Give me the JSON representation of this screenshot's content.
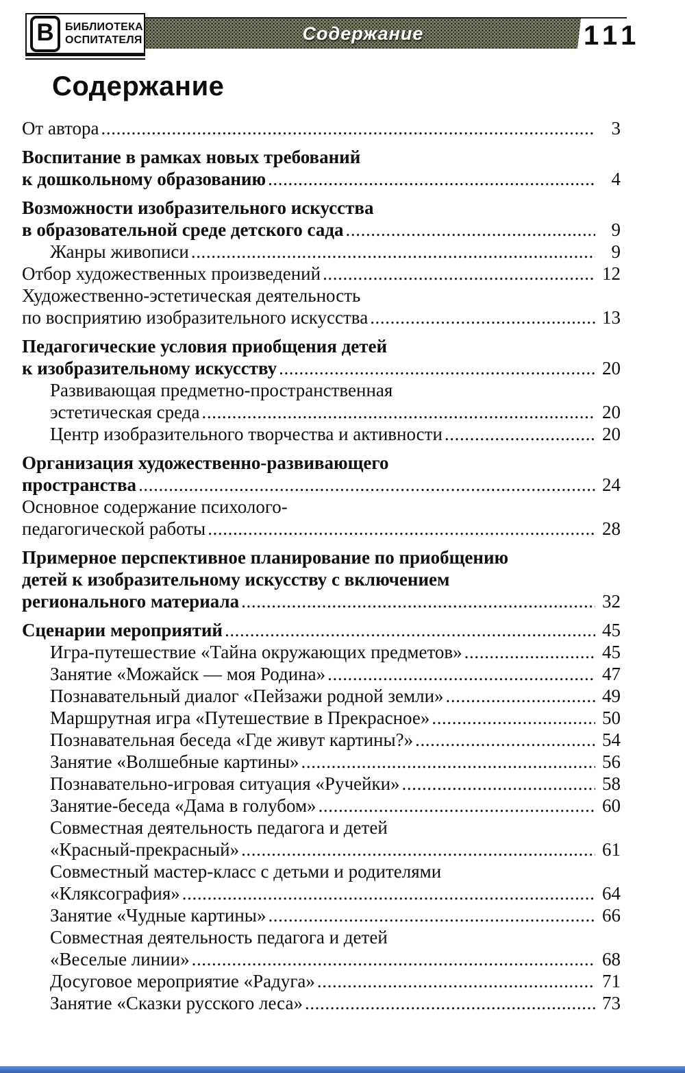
{
  "header": {
    "logo": {
      "initial": "В",
      "line1": "БИБЛИОТЕКА",
      "line2": "ОСПИТАТЕЛЯ"
    },
    "banner_title": "Содержание",
    "page_number": "111"
  },
  "page_title": "Содержание",
  "toc": {
    "entries": [
      {
        "lines": [
          "От автора"
        ],
        "page": "3",
        "bold": false,
        "indent": 0,
        "gap": false
      },
      {
        "lines": [
          "Воспитание в рамках новых требований",
          "к дошкольному образованию"
        ],
        "page": "4",
        "bold": true,
        "indent": 0,
        "gap": true
      },
      {
        "lines": [
          "Возможности изобразительного искусства",
          "в образовательной среде детского сада"
        ],
        "page": "9",
        "bold": true,
        "indent": 0,
        "gap": true
      },
      {
        "lines": [
          "Жанры живописи"
        ],
        "page": "9",
        "bold": false,
        "indent": 1,
        "gap": false
      },
      {
        "lines": [
          "Отбор художественных произведений"
        ],
        "page": "12",
        "bold": false,
        "indent": 0,
        "gap": false
      },
      {
        "lines": [
          "Художественно-эстетическая деятельность",
          "по восприятию изобразительного искусства"
        ],
        "page": "13",
        "bold": false,
        "indent": 0,
        "gap": false
      },
      {
        "lines": [
          "Педагогические условия приобщения детей",
          "к изобразительному искусству"
        ],
        "page": "20",
        "bold": true,
        "indent": 0,
        "gap": true
      },
      {
        "lines": [
          "Развивающая предметно-пространственная",
          "эстетическая среда"
        ],
        "page": "20",
        "bold": false,
        "indent": 1,
        "gap": false
      },
      {
        "lines": [
          "Центр изобразительного творчества и активности"
        ],
        "page": "20",
        "bold": false,
        "indent": 1,
        "gap": false
      },
      {
        "lines": [
          "Организация художественно-развивающего",
          "пространства"
        ],
        "page": "24",
        "bold": true,
        "indent": 0,
        "gap": true
      },
      {
        "lines": [
          "Основное содержание психолого-",
          "педагогической работы"
        ],
        "page": "28",
        "bold": false,
        "indent": 0,
        "gap": false
      },
      {
        "lines": [
          "Примерное перспективное планирование по приобщению",
          "детей к изобразительному искусству с включением",
          "регионального материала"
        ],
        "page": "32",
        "bold": true,
        "indent": 0,
        "gap": true
      },
      {
        "lines": [
          "Сценарии мероприятий"
        ],
        "page": "45",
        "bold": true,
        "indent": 0,
        "gap": true
      },
      {
        "lines": [
          "Игра-путешествие «Тайна окружающих предметов»"
        ],
        "page": "45",
        "bold": false,
        "indent": 1,
        "gap": false
      },
      {
        "lines": [
          "Занятие «Можайск — моя Родина»"
        ],
        "page": "47",
        "bold": false,
        "indent": 1,
        "gap": false
      },
      {
        "lines": [
          "Познавательный диалог «Пейзажи родной земли»"
        ],
        "page": "49",
        "bold": false,
        "indent": 1,
        "gap": false
      },
      {
        "lines": [
          "Маршрутная игра «Путешествие в Прекрасное»"
        ],
        "page": "50",
        "bold": false,
        "indent": 1,
        "gap": false
      },
      {
        "lines": [
          "Познавательная беседа «Где живут картины?»"
        ],
        "page": "54",
        "bold": false,
        "indent": 1,
        "gap": false
      },
      {
        "lines": [
          "Занятие «Волшебные картины»"
        ],
        "page": "56",
        "bold": false,
        "indent": 1,
        "gap": false
      },
      {
        "lines": [
          "Познавательно-игровая ситуация «Ручейки»"
        ],
        "page": "58",
        "bold": false,
        "indent": 1,
        "gap": false
      },
      {
        "lines": [
          "Занятие-беседа «Дама в голубом»"
        ],
        "page": "60",
        "bold": false,
        "indent": 1,
        "gap": false
      },
      {
        "lines": [
          "Совместная деятельность педагога и детей",
          "«Красный-прекрасный»"
        ],
        "page": "61",
        "bold": false,
        "indent": 1,
        "gap": false
      },
      {
        "lines": [
          "Совместный мастер-класс с детьми и родителями",
          "«Кляксография»"
        ],
        "page": "64",
        "bold": false,
        "indent": 1,
        "gap": false
      },
      {
        "lines": [
          "Занятие «Чудные картины»"
        ],
        "page": "66",
        "bold": false,
        "indent": 1,
        "gap": false
      },
      {
        "lines": [
          "Совместная деятельность педагога и детей",
          "«Веселые линии»"
        ],
        "page": "68",
        "bold": false,
        "indent": 1,
        "gap": false
      },
      {
        "lines": [
          "Досуговое мероприятие «Радуга»"
        ],
        "page": "71",
        "bold": false,
        "indent": 1,
        "gap": false
      },
      {
        "lines": [
          "Занятие «Сказки русского леса»"
        ],
        "page": "73",
        "bold": false,
        "indent": 1,
        "gap": false
      }
    ]
  },
  "colors": {
    "banner_base": "#81856e",
    "banner_text": "#ffffff",
    "ink": "#101010",
    "bottom_edge": "#4474c4"
  }
}
